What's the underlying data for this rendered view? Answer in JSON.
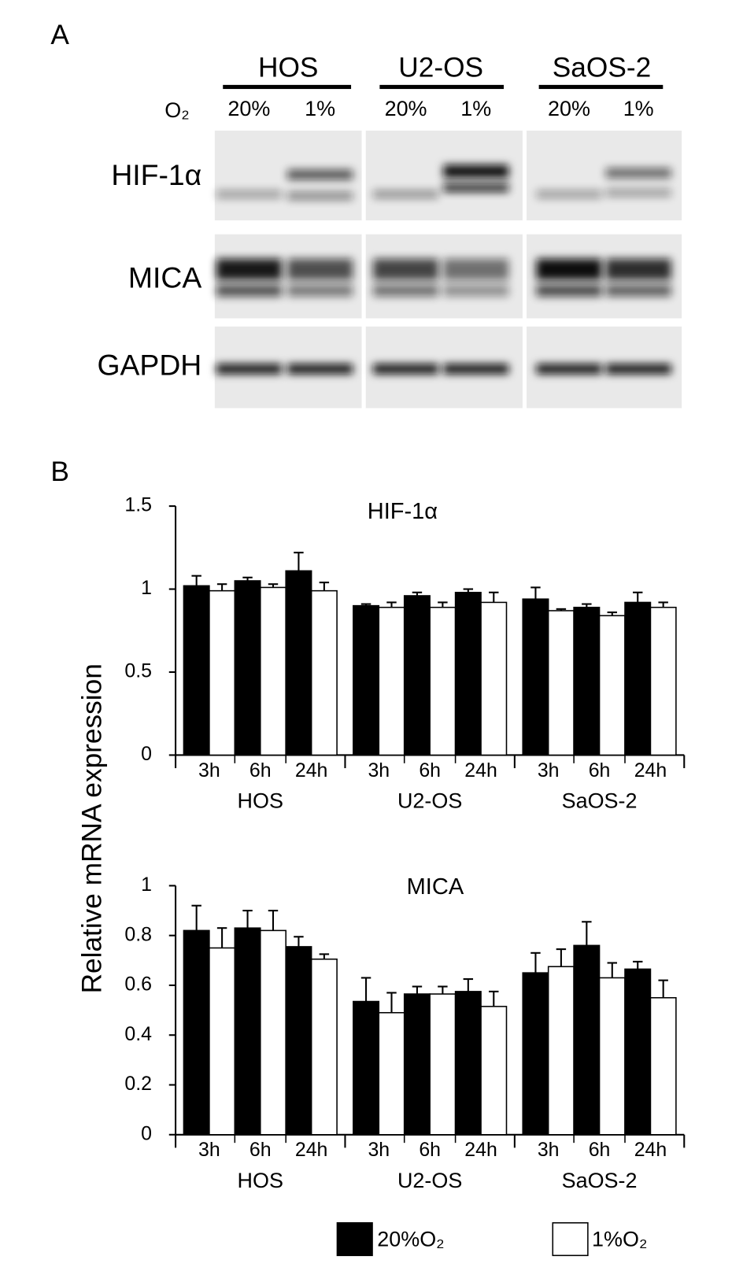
{
  "panel_a": {
    "label": "A",
    "o2_label": "O₂",
    "cell_lines": [
      {
        "name": "HOS",
        "conditions": [
          "20%",
          "1%"
        ]
      },
      {
        "name": "U2-OS",
        "conditions": [
          "20%",
          "1%"
        ]
      },
      {
        "name": "SaOS-2",
        "conditions": [
          "20%",
          "1%"
        ]
      }
    ],
    "proteins": [
      "HIF-1α",
      "MICA",
      "GAPDH"
    ]
  },
  "panel_b": {
    "label": "B",
    "y_label": "Relative mRNA expression"
  },
  "chart_data": [
    {
      "type": "bar",
      "title": "HIF-1α",
      "categories": [
        "3h",
        "6h",
        "24h",
        "3h",
        "6h",
        "24h",
        "3h",
        "6h",
        "24h"
      ],
      "groups": [
        "HOS",
        "U2-OS",
        "SaOS-2"
      ],
      "series": [
        {
          "name": "20%O₂",
          "color": "#000000",
          "values": [
            1.02,
            1.05,
            1.11,
            0.9,
            0.96,
            0.98,
            0.94,
            0.89,
            0.92
          ],
          "errors": [
            0.06,
            0.02,
            0.11,
            0.01,
            0.02,
            0.02,
            0.07,
            0.02,
            0.06
          ]
        },
        {
          "name": "1%O₂",
          "color": "#ffffff",
          "values": [
            0.99,
            1.01,
            0.99,
            0.89,
            0.89,
            0.92,
            0.87,
            0.84,
            0.89
          ],
          "errors": [
            0.04,
            0.02,
            0.05,
            0.03,
            0.03,
            0.06,
            0.01,
            0.02,
            0.03
          ]
        }
      ],
      "ylim": [
        0,
        1.5
      ],
      "yticks": [
        0,
        0.5,
        1,
        1.5
      ]
    },
    {
      "type": "bar",
      "title": "MICA",
      "categories": [
        "3h",
        "6h",
        "24h",
        "3h",
        "6h",
        "24h",
        "3h",
        "6h",
        "24h"
      ],
      "groups": [
        "HOS",
        "U2-OS",
        "SaOS-2"
      ],
      "series": [
        {
          "name": "20%O₂",
          "color": "#000000",
          "values": [
            0.82,
            0.83,
            0.755,
            0.535,
            0.565,
            0.575,
            0.65,
            0.76,
            0.665
          ],
          "errors": [
            0.1,
            0.07,
            0.04,
            0.095,
            0.03,
            0.05,
            0.08,
            0.095,
            0.03
          ]
        },
        {
          "name": "1%O₂",
          "color": "#ffffff",
          "values": [
            0.75,
            0.82,
            0.705,
            0.49,
            0.565,
            0.515,
            0.675,
            0.63,
            0.55
          ],
          "errors": [
            0.08,
            0.08,
            0.02,
            0.08,
            0.03,
            0.06,
            0.07,
            0.06,
            0.07
          ]
        }
      ],
      "ylim": [
        0,
        1
      ],
      "yticks": [
        0,
        0.2,
        0.4,
        0.6,
        0.8,
        1
      ]
    }
  ]
}
